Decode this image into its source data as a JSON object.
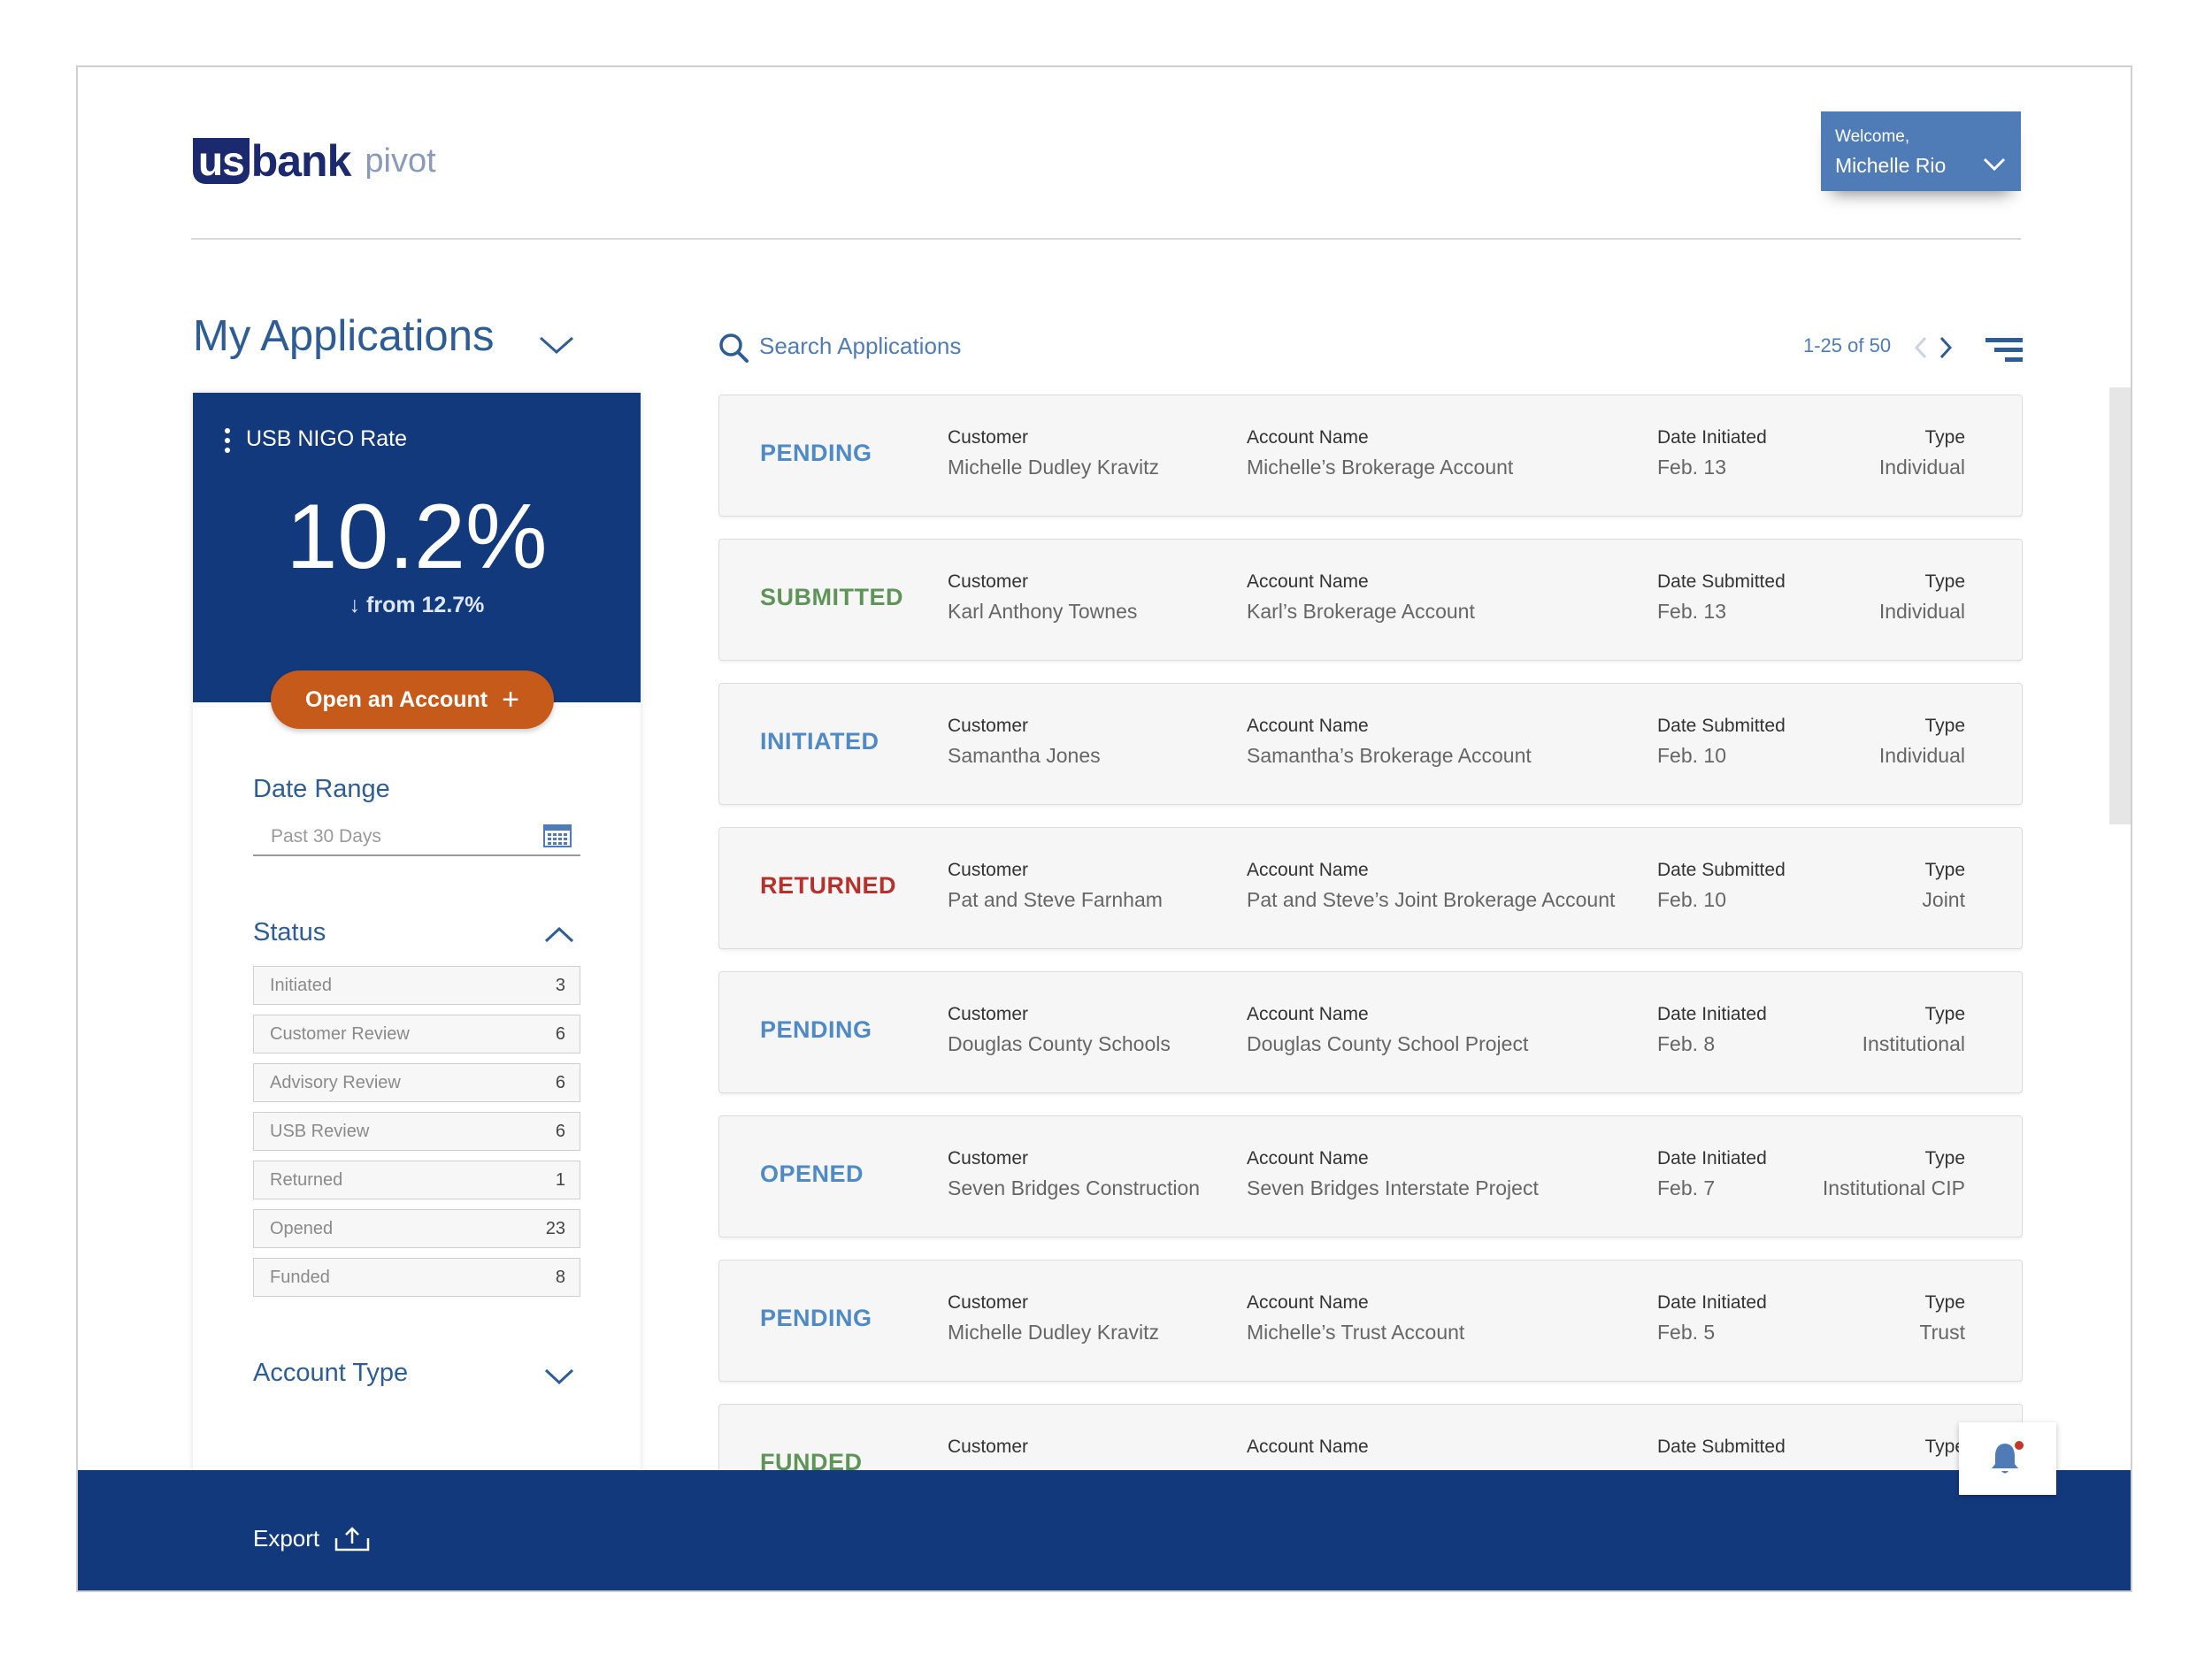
{
  "header": {
    "logo_us": "us",
    "logo_bank": "bank",
    "logo_pivot": "pivot",
    "welcome_label": "Welcome,",
    "user_name": "Michelle Rio"
  },
  "page_title": "My Applications",
  "nigo": {
    "title": "USB NIGO Rate",
    "value": "10.2%",
    "change": "↓ from 12.7%"
  },
  "open_account_label": "Open an Account",
  "date_range": {
    "title": "Date Range",
    "placeholder": "Past 30 Days"
  },
  "status_filter": {
    "title": "Status",
    "items": [
      {
        "label": "Initiated",
        "count": "3"
      },
      {
        "label": "Customer Review",
        "count": "6"
      },
      {
        "label": "Advisory Review",
        "count": "6"
      },
      {
        "label": "USB Review",
        "count": "6"
      },
      {
        "label": "Returned",
        "count": "1"
      },
      {
        "label": "Opened",
        "count": "23"
      },
      {
        "label": "Funded",
        "count": "8"
      }
    ]
  },
  "account_type_title": "Account Type",
  "search": {
    "placeholder": "Search Applications"
  },
  "pager": {
    "text": "1-25 of 50"
  },
  "status_colors": {
    "blue": "#4f8ac6",
    "green": "#5f9458",
    "red": "#b5312b"
  },
  "applications": [
    {
      "status": "PENDING",
      "color": "#4f8ac6",
      "customer_label": "Customer",
      "customer": "Michelle Dudley Kravitz",
      "account_label": "Account Name",
      "account": "Michelle’s Brokerage Account",
      "date_label": "Date Initiated",
      "date": "Feb. 13",
      "type_label": "Type",
      "type": "Individual"
    },
    {
      "status": "SUBMITTED",
      "color": "#5f9458",
      "customer_label": "Customer",
      "customer": "Karl Anthony Townes",
      "account_label": "Account Name",
      "account": "Karl’s Brokerage Account",
      "date_label": "Date Submitted",
      "date": "Feb. 13",
      "type_label": "Type",
      "type": "Individual"
    },
    {
      "status": "INITIATED",
      "color": "#4f8ac6",
      "customer_label": "Customer",
      "customer": "Samantha Jones",
      "account_label": "Account Name",
      "account": "Samantha’s Brokerage Account",
      "date_label": "Date Submitted",
      "date": "Feb. 10",
      "type_label": "Type",
      "type": "Individual"
    },
    {
      "status": "RETURNED",
      "color": "#b5312b",
      "customer_label": "Customer",
      "customer": "Pat and Steve Farnham",
      "account_label": "Account Name",
      "account": "Pat and Steve’s Joint Brokerage Account",
      "date_label": "Date Submitted",
      "date": "Feb. 10",
      "type_label": "Type",
      "type": "Joint"
    },
    {
      "status": "PENDING",
      "color": "#4f8ac6",
      "customer_label": "Customer",
      "customer": "Douglas County Schools",
      "account_label": "Account Name",
      "account": "Douglas County School Project",
      "date_label": "Date Initiated",
      "date": "Feb. 8",
      "type_label": "Type",
      "type": "Institutional"
    },
    {
      "status": "OPENED",
      "color": "#4f8ac6",
      "customer_label": "Customer",
      "customer": "Seven Bridges Construction",
      "account_label": "Account Name",
      "account": "Seven Bridges Interstate Project",
      "date_label": "Date Initiated",
      "date": "Feb. 7",
      "type_label": "Type",
      "type": "Institutional CIP"
    },
    {
      "status": "PENDING",
      "color": "#4f8ac6",
      "customer_label": "Customer",
      "customer": "Michelle Dudley Kravitz",
      "account_label": "Account Name",
      "account": "Michelle’s Trust Account",
      "date_label": "Date Initiated",
      "date": "Feb. 5",
      "type_label": "Type",
      "type": "Trust"
    },
    {
      "status": "FUNDED",
      "color": "#5f9458",
      "customer_label": "Customer",
      "customer": "",
      "account_label": "Account Name",
      "account": "",
      "date_label": "Date Submitted",
      "date": "",
      "type_label": "Type",
      "type": ""
    }
  ],
  "footer": {
    "export_label": "Export"
  }
}
